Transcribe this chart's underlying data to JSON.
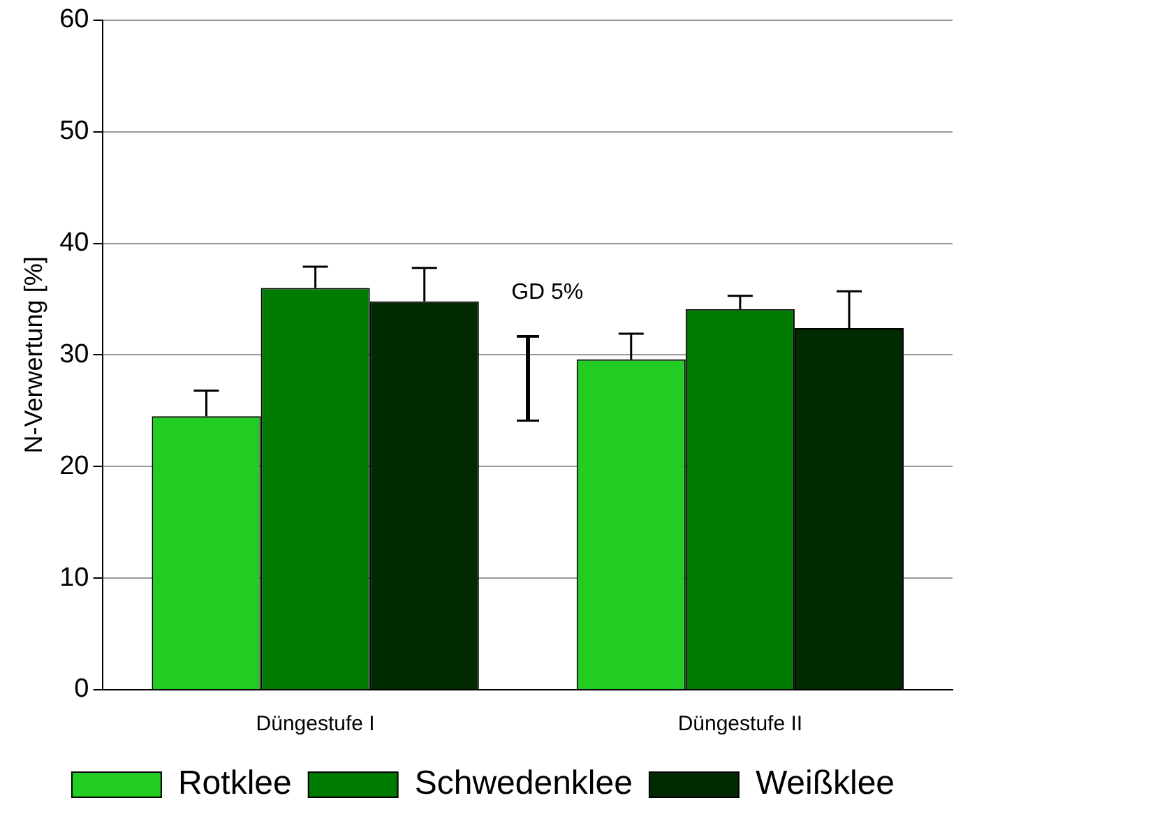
{
  "chart_data": {
    "type": "bar",
    "ylabel": "N-Verwertung [%]",
    "categories": [
      "Düngestufe I",
      "Düngestufe II"
    ],
    "series": [
      {
        "name": "Rotklee",
        "color": "#22cc22",
        "values": [
          24.5,
          29.6
        ],
        "errors": [
          [
            24.5,
            26.8
          ],
          [
            29.6,
            31.9
          ]
        ]
      },
      {
        "name": "Schwedenklee",
        "color": "#007a00",
        "values": [
          36.0,
          34.1
        ],
        "errors": [
          [
            36.0,
            37.9
          ],
          [
            34.1,
            35.3
          ]
        ]
      },
      {
        "name": "Weißklee",
        "color": "#002a00",
        "values": [
          34.8,
          32.4
        ],
        "errors": [
          [
            34.8,
            37.8
          ],
          [
            32.4,
            35.7
          ]
        ]
      }
    ],
    "annotations": [
      "GD 5%"
    ],
    "ylim": [
      0,
      60
    ],
    "yticks": [
      0,
      10,
      20,
      30,
      40,
      50,
      60
    ],
    "grid": "y",
    "legend": "bottom"
  }
}
